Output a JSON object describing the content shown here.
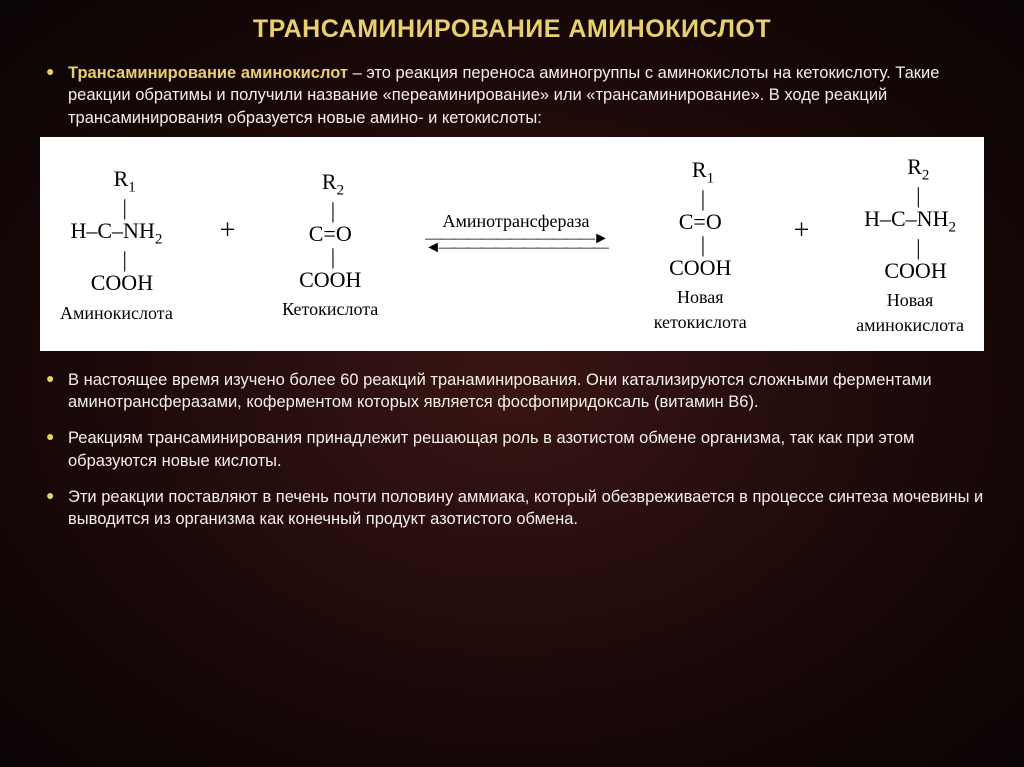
{
  "title": "ТРАНСАМИНИРОВАНИЕ АМИНОКИСЛОТ",
  "bullets": {
    "b1_lead": "Трансаминирование аминокислот",
    "b1_rest": " – это реакция переноса аминогруппы с аминокислоты на кетокислоту. Такие реакции обратимы и получили название «переаминирование» или «трансаминирование». В ходе реакций трансаминирования образуется новые амино- и кетокислоты:",
    "b2": "В настоящее время изучено более 60 реакций транаминирования. Они катализируются сложными ферментами аминотрансферазами, коферментом которых является фосфопиридоксаль (витамин В6).",
    "b3": "Реакциям трансаминирования принадлежит решающая роль в азотистом обмене организма, так как при этом образуются новые кислоты.",
    "b4": "Эти реакции поставляют в печень почти половину аммиака, который обезвреживается в процессе синтеза мочевины и выводится из организма как конечный продукт азотистого обмена."
  },
  "diagram": {
    "enzyme": "Аминотрансфераза",
    "mols": [
      {
        "r": "R₁",
        "mid": "H–C–NH₂",
        "bot": "COOH",
        "label": "Аминокислота"
      },
      {
        "r": "R₂",
        "mid": "C=O",
        "bot": "COOH",
        "label": "Кетокислота"
      },
      {
        "r": "R₁",
        "mid": "C=O",
        "bot": "COOH",
        "label": "Новая\nкетокислота"
      },
      {
        "r": "R₂",
        "mid": "H–C–NH₂",
        "bot": "COOH",
        "label": "Новая\nаминокислота"
      }
    ]
  },
  "colors": {
    "accent": "#e8d070",
    "text": "#f5f0e8",
    "diagram_bg": "#ffffff",
    "diagram_fg": "#000000"
  }
}
